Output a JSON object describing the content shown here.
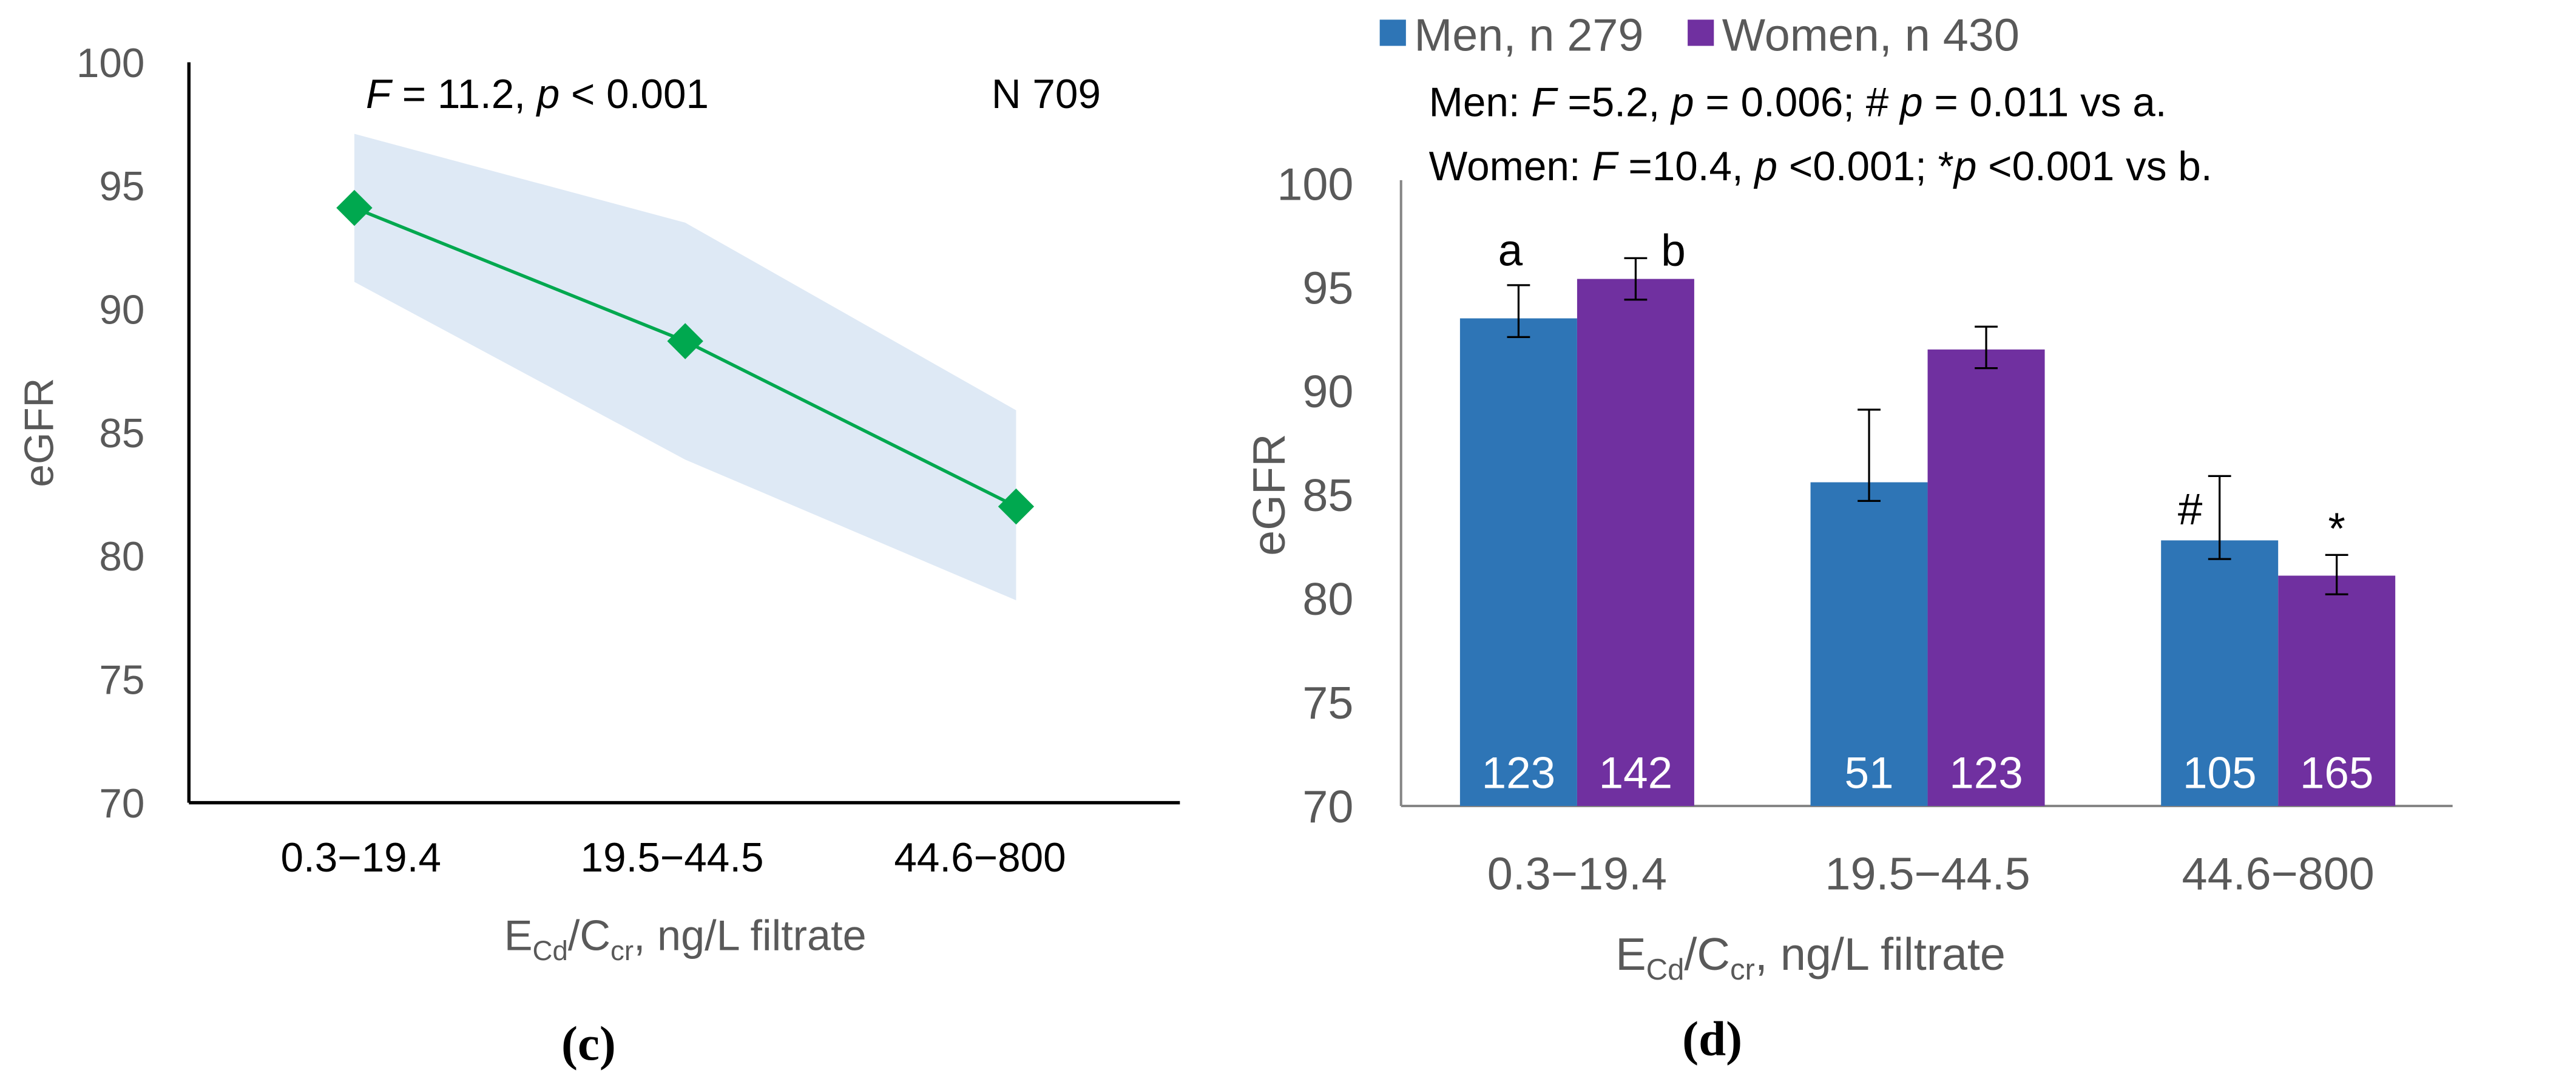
{
  "chart_data": [
    {
      "type": "line",
      "panel_label": "(c)",
      "categories": [
        "0.3−19.4",
        "19.5−44.5",
        "44.6−800"
      ],
      "series": [
        {
          "values": [
            94.1,
            88.7,
            82.0
          ],
          "band_upper": [
            97.1,
            93.5,
            85.9
          ],
          "band_lower": [
            91.1,
            83.9,
            78.2
          ]
        }
      ],
      "ylabel": "eGFR",
      "xlabel": "E_Cd/C_cr, ng/L filtrate",
      "xlabel_parts": {
        "main": "E",
        "sub1": "Cd",
        "mid": "/C",
        "sub2": "cr",
        "rest": ", ng/L filtrate"
      },
      "ylim": [
        70,
        100
      ],
      "yticks": [
        70,
        75,
        80,
        85,
        90,
        95,
        100
      ],
      "annotations": {
        "stats_F": "F",
        "stats_mid": " = 11.2, ",
        "stats_p": "p",
        "stats_end": " < 0.001",
        "n": "N 709"
      },
      "colors": {
        "line": "#00a84f",
        "band": "#dee9f5"
      },
      "grid": false
    },
    {
      "type": "bar",
      "panel_label": "(d)",
      "categories": [
        "0.3−19.4",
        "19.5−44.5",
        "44.6−800"
      ],
      "series": [
        {
          "name": "Men, n 279",
          "color": "#2e75b6",
          "values": [
            93.5,
            85.6,
            82.8
          ],
          "err_low": [
            92.6,
            84.7,
            81.9
          ],
          "err_high": [
            95.1,
            89.1,
            85.9
          ],
          "counts": [
            "123",
            "51",
            "105"
          ],
          "marks": [
            "a",
            "",
            "#"
          ]
        },
        {
          "name": "Women, n 430",
          "color": "#7030a0",
          "values": [
            95.4,
            92.0,
            81.1
          ],
          "err_low": [
            94.4,
            91.1,
            80.2
          ],
          "err_high": [
            96.4,
            93.1,
            82.1
          ],
          "counts": [
            "142",
            "123",
            "165"
          ],
          "marks": [
            "b",
            "",
            "*"
          ]
        }
      ],
      "ylabel": "eGFR",
      "xlabel_parts": {
        "main": "E",
        "sub1": "Cd",
        "mid": "/C",
        "sub2": "cr",
        "rest": ", ng/L filtrate"
      },
      "ylim": [
        70,
        100
      ],
      "yticks": [
        70,
        75,
        80,
        85,
        90,
        95,
        100
      ],
      "legend_position": "top-left",
      "annotations": {
        "men": [
          "Men: ",
          "F",
          " =5.2, ",
          "p",
          " = 0.006; # ",
          "p",
          " = 0.011 vs a."
        ],
        "women": [
          "Women: ",
          "F",
          " =10.4",
          ", ",
          "p",
          " <0.001; *",
          "p",
          " <0.001 vs b."
        ]
      },
      "grid": false
    }
  ]
}
